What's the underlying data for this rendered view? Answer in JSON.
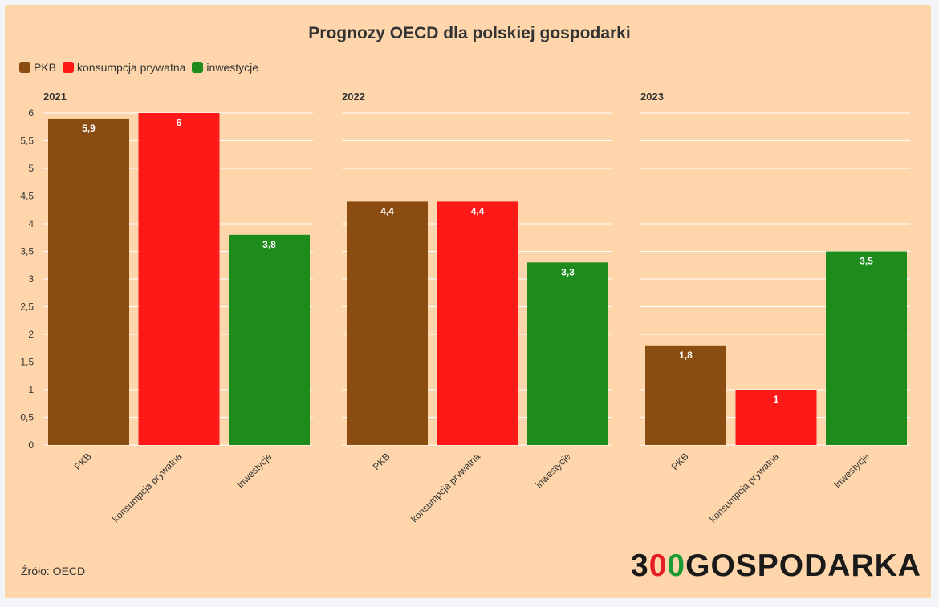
{
  "chart_data": {
    "type": "bar",
    "title": "Prognozy OECD dla polskiej gospodarki",
    "categories": [
      "PKB",
      "konsumpcja prywatna",
      "inwestycje"
    ],
    "legend": [
      {
        "name": "PKB",
        "color": "#8b4c12"
      },
      {
        "name": "konsumpcja prywatna",
        "color": "#fe1919"
      },
      {
        "name": "inwestycje",
        "color": "#1d8c1d"
      }
    ],
    "facets": [
      {
        "name": "2021",
        "values": [
          5.9,
          6,
          3.8
        ],
        "labels": [
          "5,9",
          "6",
          "3,8"
        ]
      },
      {
        "name": "2022",
        "values": [
          4.4,
          4.4,
          3.3
        ],
        "labels": [
          "4,4",
          "4,4",
          "3,3"
        ]
      },
      {
        "name": "2023",
        "values": [
          1.8,
          1,
          3.5
        ],
        "labels": [
          "1,8",
          "1",
          "3,5"
        ]
      }
    ],
    "ylim": [
      0,
      6
    ],
    "yticks": [
      0,
      0.5,
      1,
      1.5,
      2,
      2.5,
      3,
      3.5,
      4,
      4.5,
      5,
      5.5,
      6
    ],
    "ytick_labels": [
      "0",
      "0,5",
      "1",
      "1,5",
      "2",
      "2,5",
      "3",
      "3,5",
      "4",
      "4,5",
      "5",
      "5,5",
      "6"
    ],
    "grid": true,
    "legend_position": "top-left"
  },
  "source": "Źróło: OECD",
  "logo": {
    "digit": "3",
    "red": "0",
    "green": "0",
    "word": "GOSPODARKA"
  },
  "colors": {
    "background": "#ffd6ab",
    "grid": "#ffffff"
  }
}
